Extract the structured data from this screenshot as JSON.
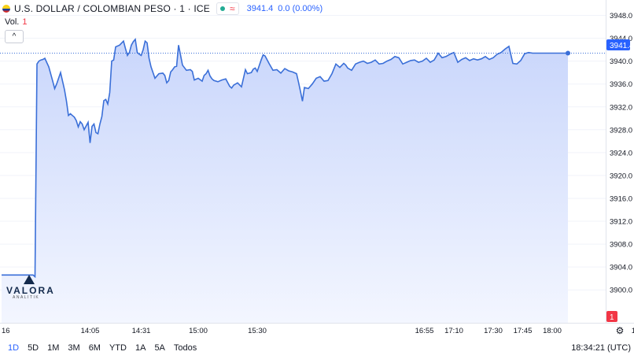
{
  "header": {
    "title": "U.S. DOLLAR / COLOMBIAN PESO · 1 · ICE",
    "price": "3941.4",
    "change": "0.0 (0.00%)"
  },
  "volume": {
    "label": "Vol.",
    "value": "1"
  },
  "collapse_label": "^",
  "logo": {
    "name": "VALORA",
    "sub": "ANALITIK"
  },
  "price_tag": "3941.4",
  "volume_tag": "1",
  "time_ranges": [
    "1D",
    "5D",
    "1M",
    "3M",
    "6M",
    "YTD",
    "1A",
    "5A",
    "Todos"
  ],
  "active_range": "1D",
  "clock": "18:34:21 (UTC)",
  "colors": {
    "line": "#3a6fd8",
    "fill_top": "#c9d6fb",
    "fill_bottom": "#f3f6ff",
    "up": "#8fcfc5",
    "down": "#ee9a9f",
    "accent": "#2962ff"
  },
  "chart_data": {
    "type": "area",
    "title": "U.S. DOLLAR / COLOMBIAN PESO · 1 · ICE",
    "ylim": [
      3897,
      3950
    ],
    "y_ticks": [
      "3948.0",
      "3944.0",
      "3940.0",
      "3936.0",
      "3932.0",
      "3928.0",
      "3924.0",
      "3920.0",
      "3916.0",
      "3912.0",
      "3908.0",
      "3904.0",
      "3900.0"
    ],
    "x_ticks": [
      {
        "label": "16",
        "t": 0
      },
      {
        "label": "14:05",
        "t": 45
      },
      {
        "label": "14:31",
        "t": 71
      },
      {
        "label": "15:00",
        "t": 100
      },
      {
        "label": "15:30",
        "t": 130
      },
      {
        "label": "16:55",
        "t": 215
      },
      {
        "label": "17:10",
        "t": 230
      },
      {
        "label": "17:30",
        "t": 250
      },
      {
        "label": "17:45",
        "t": 265
      },
      {
        "label": "18:00",
        "t": 280
      },
      {
        "label": "18:4",
        "t": 324
      }
    ],
    "series": [
      {
        "name": "USD/COP",
        "x": [
          0,
          6,
          11,
          13,
          14,
          15,
          16,
          17,
          18,
          19,
          20,
          21,
          22,
          24,
          26,
          27,
          28,
          29,
          30,
          32,
          33,
          34,
          35,
          36,
          37,
          38,
          39,
          40,
          41,
          42,
          44,
          45,
          46,
          47,
          48,
          49,
          50,
          51,
          52,
          53,
          54,
          55,
          56,
          57,
          58,
          60,
          62,
          63,
          64,
          65,
          66,
          67,
          68,
          69,
          70,
          71,
          72,
          73,
          74,
          75,
          76,
          78,
          80,
          82,
          83,
          84,
          85,
          86,
          87,
          88,
          89,
          90,
          92,
          94,
          96,
          97,
          98,
          100,
          102,
          103,
          104,
          105,
          106,
          107,
          108,
          110,
          112,
          114,
          116,
          117,
          118,
          120,
          122,
          124,
          125,
          126,
          127,
          128,
          129,
          130,
          131,
          132,
          133,
          134,
          136,
          138,
          140,
          142,
          144,
          146,
          148,
          150,
          151,
          152,
          153,
          154,
          156,
          158,
          160,
          162,
          164,
          166,
          168,
          170,
          172,
          174,
          175,
          176,
          178,
          180,
          182,
          184,
          186,
          188,
          190,
          192,
          194,
          196,
          198,
          200,
          202,
          204,
          206,
          208,
          210,
          212,
          214,
          216,
          218,
          220,
          222,
          224,
          226,
          228,
          230,
          232,
          234,
          236,
          238,
          240,
          242,
          244,
          246,
          248,
          250,
          252,
          254,
          256,
          258,
          260,
          262,
          264,
          266,
          268,
          270,
          272,
          274,
          276,
          278,
          280,
          282,
          284,
          286,
          288
        ],
        "values": [
          3902.6,
          3902.6,
          3902.6,
          3902.6,
          3902.6,
          3902.6,
          3902.6,
          3902.3,
          3939.5,
          3940,
          3940.2,
          3940.3,
          3940.5,
          3939,
          3936.5,
          3935.2,
          3936,
          3937,
          3938,
          3935,
          3933,
          3930.5,
          3930.8,
          3930.5,
          3930.2,
          3929.6,
          3928.5,
          3929.4,
          3929,
          3928,
          3929.3,
          3925.7,
          3928.6,
          3929,
          3927.5,
          3927.3,
          3929,
          3930.3,
          3933.1,
          3933.3,
          3932.5,
          3934.5,
          3940,
          3940.2,
          3942.5,
          3942.8,
          3943.5,
          3942.2,
          3941,
          3941.5,
          3942.8,
          3943.4,
          3943.8,
          3941.5,
          3941.2,
          3941,
          3942,
          3943.5,
          3943.2,
          3940.5,
          3939,
          3937,
          3937.8,
          3937.9,
          3937.5,
          3936.2,
          3936.6,
          3938.1,
          3938.5,
          3939,
          3939.1,
          3942.8,
          3939.3,
          3938.4,
          3938.5,
          3938.2,
          3936.7,
          3937,
          3936.5,
          3937.5,
          3937.8,
          3938.4,
          3937.4,
          3936.9,
          3936.6,
          3936.4,
          3936.7,
          3936.9,
          3935.6,
          3935.3,
          3935.8,
          3936.2,
          3935.5,
          3938.5,
          3937.8,
          3937.9,
          3938,
          3938.6,
          3938.8,
          3938.2,
          3939.2,
          3940.2,
          3941.1,
          3940.9,
          3939.6,
          3938.4,
          3938.5,
          3937.9,
          3938.7,
          3938.3,
          3938.1,
          3937.8,
          3936.3,
          3934.7,
          3933,
          3935.4,
          3935.2,
          3936,
          3937,
          3937.3,
          3936.5,
          3936.6,
          3937.8,
          3939.5,
          3938.9,
          3939.6,
          3939.3,
          3938.8,
          3938.4,
          3939.5,
          3939.8,
          3940,
          3939.6,
          3939.8,
          3940.2,
          3939.5,
          3939.6,
          3940,
          3940.3,
          3940.8,
          3940.6,
          3939.5,
          3939.8,
          3940.1,
          3940.2,
          3939.8,
          3940,
          3940.5,
          3939.8,
          3940.2,
          3941.4,
          3940.6,
          3940.8,
          3941.2,
          3941.5,
          3939.8,
          3940.3,
          3940.6,
          3940.1,
          3940.4,
          3940.2,
          3940.4,
          3940.8,
          3940.3,
          3940.6,
          3941.2,
          3941.5,
          3942.1,
          3942.6,
          3939.6,
          3939.5,
          3940.1,
          3941.3,
          3941.5,
          3941.4,
          3941.4,
          3941.4,
          3941.4,
          3941.4,
          3941.4,
          3941.4,
          3941.4,
          3941.4,
          3941.4
        ]
      }
    ],
    "volume": {
      "ylim": [
        0,
        17
      ],
      "bars": [
        [
          71,
          1,
          1
        ],
        [
          73,
          2,
          1
        ],
        [
          75,
          1,
          1
        ],
        [
          77,
          1,
          0
        ],
        [
          79,
          1,
          1
        ],
        [
          81,
          2,
          1
        ],
        [
          83,
          1,
          1
        ],
        [
          85,
          3,
          0
        ],
        [
          87,
          1,
          1
        ],
        [
          89,
          2,
          1
        ],
        [
          91,
          1,
          1
        ],
        [
          93,
          3,
          0
        ],
        [
          95,
          1,
          1
        ],
        [
          97,
          2,
          1
        ],
        [
          99,
          1,
          1
        ],
        [
          101,
          2,
          0
        ],
        [
          103,
          1,
          1
        ],
        [
          105,
          1,
          1
        ],
        [
          107,
          4,
          0
        ],
        [
          109,
          2,
          1
        ],
        [
          111,
          1,
          1
        ],
        [
          113,
          2,
          1
        ],
        [
          115,
          3,
          0
        ],
        [
          117,
          1,
          1
        ],
        [
          119,
          2,
          1
        ],
        [
          121,
          4,
          1
        ],
        [
          123,
          1,
          0
        ],
        [
          125,
          2,
          1
        ],
        [
          127,
          1,
          1
        ],
        [
          129,
          3,
          0
        ],
        [
          131,
          1,
          1
        ],
        [
          133,
          2,
          1
        ],
        [
          135,
          1,
          0
        ],
        [
          137,
          3,
          1
        ],
        [
          139,
          1,
          1
        ],
        [
          141,
          2,
          1
        ],
        [
          143,
          1,
          0
        ],
        [
          145,
          2,
          1
        ],
        [
          147,
          1,
          1
        ],
        [
          149,
          3,
          0
        ],
        [
          151,
          1,
          1
        ],
        [
          153,
          2,
          1
        ],
        [
          155,
          1,
          0
        ],
        [
          157,
          2,
          1
        ],
        [
          159,
          1,
          1
        ],
        [
          161,
          3,
          0
        ],
        [
          163,
          1,
          1
        ],
        [
          165,
          2,
          1
        ],
        [
          167,
          1,
          0
        ],
        [
          169,
          4,
          1
        ],
        [
          171,
          1,
          1
        ],
        [
          173,
          2,
          1
        ],
        [
          175,
          1,
          0
        ],
        [
          177,
          2,
          1
        ],
        [
          179,
          1,
          1
        ],
        [
          181,
          3,
          0
        ],
        [
          183,
          1,
          1
        ],
        [
          185,
          2,
          1
        ],
        [
          187,
          1,
          0
        ],
        [
          189,
          3,
          1
        ],
        [
          191,
          1,
          1
        ],
        [
          193,
          2,
          1
        ],
        [
          195,
          1,
          0
        ],
        [
          197,
          2,
          1
        ],
        [
          199,
          1,
          1
        ],
        [
          201,
          3,
          0
        ],
        [
          203,
          1,
          1
        ],
        [
          205,
          2,
          1
        ],
        [
          207,
          1,
          0
        ],
        [
          209,
          2,
          1
        ],
        [
          211,
          1,
          1
        ],
        [
          213,
          3,
          0
        ],
        [
          215,
          1,
          1
        ],
        [
          217,
          2,
          1
        ],
        [
          219,
          1,
          0
        ],
        [
          221,
          3,
          1
        ],
        [
          223,
          1,
          1
        ],
        [
          225,
          2,
          1
        ],
        [
          227,
          1,
          0
        ],
        [
          229,
          2,
          1
        ],
        [
          231,
          1,
          1
        ],
        [
          233,
          3,
          0
        ],
        [
          235,
          1,
          1
        ],
        [
          237,
          2,
          1
        ],
        [
          239,
          1,
          0
        ],
        [
          241,
          2,
          1
        ],
        [
          243,
          1,
          1
        ],
        [
          245,
          3,
          0
        ],
        [
          247,
          1,
          1
        ],
        [
          249,
          2,
          1
        ],
        [
          251,
          1,
          0
        ],
        [
          253,
          3,
          1
        ],
        [
          255,
          1,
          1
        ],
        [
          257,
          2,
          1
        ],
        [
          259,
          1,
          0
        ],
        [
          261,
          2,
          1
        ],
        [
          263,
          1,
          1
        ],
        [
          265,
          3,
          0
        ],
        [
          267,
          1,
          1
        ],
        [
          269,
          2,
          1
        ],
        [
          271,
          1,
          0
        ],
        [
          273,
          2,
          1
        ],
        [
          275,
          1,
          1
        ],
        [
          277,
          3,
          0
        ],
        [
          279,
          1,
          1
        ],
        [
          281,
          2,
          1
        ],
        [
          283,
          1,
          0
        ],
        [
          285,
          2,
          1
        ],
        [
          287,
          1,
          1
        ]
      ]
    }
  }
}
